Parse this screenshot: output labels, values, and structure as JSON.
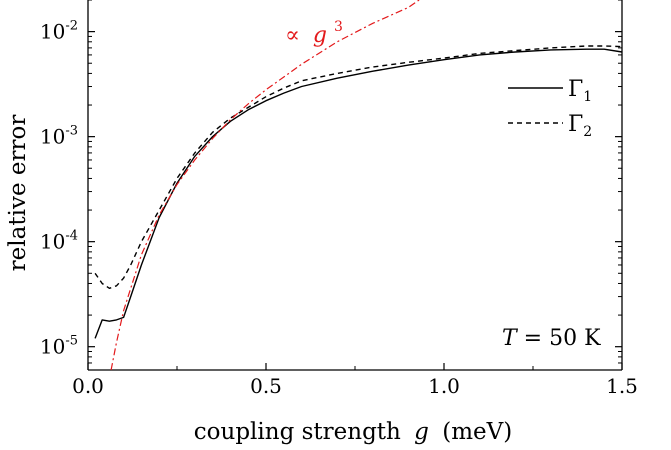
{
  "chart_data": {
    "type": "line",
    "xlabel": "coupling strength",
    "xlabel_var": "g",
    "xlabel_unit": "(meV)",
    "ylabel": "relative error",
    "xlim": [
      0,
      1.5
    ],
    "ylim": [
      6e-06,
      0.02
    ],
    "yscale": "log",
    "x_ticks": [
      0.0,
      0.5,
      1.0,
      1.5
    ],
    "x_tick_labels": [
      "0.0",
      "0.5",
      "1.0",
      "1.5"
    ],
    "y_ticks": [
      1e-05,
      0.0001,
      0.001,
      0.01
    ],
    "y_tick_labels": [
      {
        "base": "10",
        "exp": "-5"
      },
      {
        "base": "10",
        "exp": "-4"
      },
      {
        "base": "10",
        "exp": "-3"
      },
      {
        "base": "10",
        "exp": "-2"
      }
    ],
    "grid": false,
    "legend_position": "top-right",
    "series": [
      {
        "name": "Γ",
        "name_sub": "1",
        "style": "solid",
        "color": "#000000",
        "points": [
          [
            0.02,
            1.2e-05
          ],
          [
            0.04,
            1.8e-05
          ],
          [
            0.06,
            1.75e-05
          ],
          [
            0.08,
            1.8e-05
          ],
          [
            0.1,
            1.9e-05
          ],
          [
            0.12,
            3e-05
          ],
          [
            0.15,
            6e-05
          ],
          [
            0.2,
            0.00017
          ],
          [
            0.25,
            0.00036
          ],
          [
            0.3,
            0.00065
          ],
          [
            0.35,
            0.001
          ],
          [
            0.4,
            0.0014
          ],
          [
            0.45,
            0.0018
          ],
          [
            0.5,
            0.0022
          ],
          [
            0.55,
            0.0026
          ],
          [
            0.6,
            0.003
          ],
          [
            0.7,
            0.0036
          ],
          [
            0.8,
            0.0042
          ],
          [
            0.9,
            0.0048
          ],
          [
            1.0,
            0.0054
          ],
          [
            1.1,
            0.006
          ],
          [
            1.2,
            0.0064
          ],
          [
            1.3,
            0.0067
          ],
          [
            1.4,
            0.0068
          ],
          [
            1.45,
            0.0068
          ],
          [
            1.5,
            0.0064
          ]
        ]
      },
      {
        "name": "Γ",
        "name_sub": "2",
        "style": "dashed",
        "color": "#000000",
        "points": [
          [
            0.02,
            5e-05
          ],
          [
            0.04,
            4e-05
          ],
          [
            0.06,
            3.6e-05
          ],
          [
            0.08,
            3.8e-05
          ],
          [
            0.1,
            4.5e-05
          ],
          [
            0.12,
            6e-05
          ],
          [
            0.15,
            0.0001
          ],
          [
            0.2,
            0.0002
          ],
          [
            0.25,
            0.0004
          ],
          [
            0.3,
            0.0007
          ],
          [
            0.35,
            0.0011
          ],
          [
            0.4,
            0.0015
          ],
          [
            0.45,
            0.0019
          ],
          [
            0.5,
            0.0024
          ],
          [
            0.55,
            0.0029
          ],
          [
            0.6,
            0.0034
          ],
          [
            0.7,
            0.004
          ],
          [
            0.8,
            0.0046
          ],
          [
            0.9,
            0.0051
          ],
          [
            1.0,
            0.0056
          ],
          [
            1.1,
            0.0062
          ],
          [
            1.2,
            0.0066
          ],
          [
            1.3,
            0.007
          ],
          [
            1.4,
            0.0073
          ],
          [
            1.45,
            0.0073
          ],
          [
            1.5,
            0.0072
          ]
        ]
      },
      {
        "name": "∝ g³",
        "style": "dashdot",
        "color": "#e31a1c",
        "points": [
          [
            0.065,
            6e-06
          ],
          [
            0.08,
            1.1e-05
          ],
          [
            0.1,
            2.2e-05
          ],
          [
            0.15,
            7.5e-05
          ],
          [
            0.2,
            0.00018
          ],
          [
            0.25,
            0.00035
          ],
          [
            0.3,
            0.0006
          ],
          [
            0.35,
            0.00096
          ],
          [
            0.4,
            0.00145
          ],
          [
            0.45,
            0.00205
          ],
          [
            0.5,
            0.0028
          ],
          [
            0.55,
            0.0037
          ],
          [
            0.6,
            0.0049
          ],
          [
            0.7,
            0.008
          ],
          [
            0.8,
            0.012
          ],
          [
            0.9,
            0.017
          ],
          [
            0.93,
            0.02
          ]
        ]
      }
    ],
    "annotations": {
      "proportional": {
        "symbol": "∝",
        "var": "g",
        "exp": "3",
        "color": "#e31a1c"
      },
      "temperature": {
        "var": "T",
        "text": " = 50 K"
      }
    }
  }
}
